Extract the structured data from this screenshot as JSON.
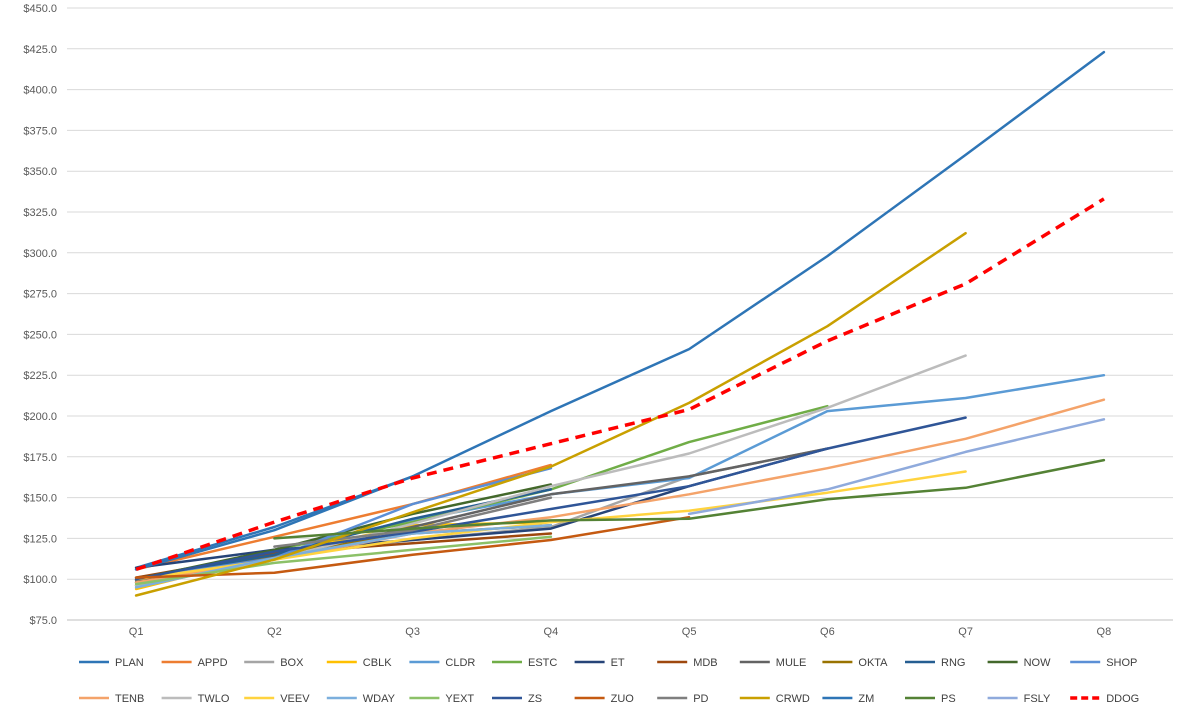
{
  "chart_data": {
    "type": "line",
    "categories": [
      "Q1",
      "Q2",
      "Q3",
      "Q4",
      "Q5",
      "Q6",
      "Q7",
      "Q8"
    ],
    "ylim": [
      75,
      450
    ],
    "yticks": [
      "$75.0",
      "$100.0",
      "$125.0",
      "$150.0",
      "$175.0",
      "$200.0",
      "$225.0",
      "$250.0",
      "$275.0",
      "$300.0",
      "$325.0",
      "$350.0",
      "$375.0",
      "$400.0",
      "$425.0",
      "$450.0"
    ],
    "grid": true,
    "legend_position": "bottom",
    "series": [
      {
        "name": "PLAN",
        "color": "#2E75B6",
        "values": [
          107,
          132,
          163,
          null,
          null,
          null,
          null,
          null
        ]
      },
      {
        "name": "APPD",
        "color": "#ED7D31",
        "values": [
          106,
          126,
          146,
          170,
          null,
          null,
          null,
          null
        ]
      },
      {
        "name": "BOX",
        "color": "#A5A5A5",
        "values": [
          101,
          114,
          124,
          132,
          163,
          180,
          null,
          null
        ]
      },
      {
        "name": "CBLK",
        "color": "#FFC000",
        "values": [
          94,
          115,
          133,
          135,
          null,
          null,
          null,
          null
        ]
      },
      {
        "name": "CLDR",
        "color": "#5B9BD5",
        "values": [
          98,
          118,
          136,
          152,
          162,
          203,
          211,
          225
        ]
      },
      {
        "name": "ESTC",
        "color": "#70AD47",
        "values": [
          98,
          118,
          135,
          155,
          184,
          206,
          null,
          null
        ]
      },
      {
        "name": "ET",
        "color": "#264478",
        "values": [
          107,
          118,
          124,
          131,
          157,
          180,
          null,
          null
        ]
      },
      {
        "name": "MDB",
        "color": "#9E480E",
        "values": [
          101,
          116,
          122,
          128,
          null,
          null,
          null,
          null
        ]
      },
      {
        "name": "MULE",
        "color": "#636363",
        "values": [
          99,
          114,
          132,
          152,
          163,
          180,
          null,
          null
        ]
      },
      {
        "name": "OKTA",
        "color": "#997300",
        "values": [
          96,
          115,
          128,
          133,
          null,
          null,
          null,
          null
        ]
      },
      {
        "name": "RNG",
        "color": "#255E91",
        "values": [
          100,
          115,
          137,
          155,
          null,
          null,
          null,
          null
        ]
      },
      {
        "name": "NOW",
        "color": "#43682B",
        "values": [
          100,
          118,
          140,
          158,
          null,
          null,
          null,
          null
        ]
      },
      {
        "name": "SHOP",
        "color": "#5B8FD6",
        "values": [
          100,
          113,
          146,
          168,
          null,
          null,
          null,
          null
        ]
      },
      {
        "name": "TENB",
        "color": "#F4A36A",
        "values": [
          98,
          112,
          128,
          138,
          152,
          168,
          186,
          210
        ]
      },
      {
        "name": "TWLO",
        "color": "#BCBCBC",
        "values": [
          96,
          112,
          134,
          157,
          177,
          205,
          237,
          null
        ]
      },
      {
        "name": "VEEV",
        "color": "#FFD33F",
        "values": [
          100,
          112,
          125,
          135,
          142,
          153,
          166,
          null
        ]
      },
      {
        "name": "WDAY",
        "color": "#7CAFDD",
        "values": [
          95,
          113,
          128,
          133,
          null,
          null,
          null,
          null
        ]
      },
      {
        "name": "YEXT",
        "color": "#8CC168",
        "values": [
          97,
          110,
          118,
          126,
          null,
          null,
          null,
          null
        ]
      },
      {
        "name": "ZS",
        "color": "#2F5597",
        "values": [
          100,
          117,
          129,
          143,
          157,
          180,
          199,
          null
        ]
      },
      {
        "name": "ZUO",
        "color": "#C55A11",
        "values": [
          101,
          104,
          115,
          124,
          138,
          null,
          null,
          null
        ]
      },
      {
        "name": "PD",
        "color": "#7F7F7F",
        "values": [
          null,
          120,
          130,
          150,
          null,
          null,
          null,
          null
        ]
      },
      {
        "name": "CRWD",
        "color": "#C9A000",
        "values": [
          90,
          112,
          141,
          169,
          208,
          255,
          312,
          null
        ]
      },
      {
        "name": "ZM",
        "color": "#2E75B6",
        "values": [
          106,
          130,
          163,
          203,
          241,
          298,
          360,
          423
        ]
      },
      {
        "name": "PS",
        "color": "#548235",
        "values": [
          null,
          125,
          131,
          136,
          137,
          149,
          156,
          173
        ]
      },
      {
        "name": "FSLY",
        "color": "#8FAADC",
        "values": [
          null,
          null,
          null,
          null,
          140,
          155,
          178,
          198
        ]
      },
      {
        "name": "DDOG",
        "color": "#FF0000",
        "dashed": true,
        "values": [
          106,
          135,
          162,
          183,
          204,
          246,
          281,
          333
        ]
      }
    ]
  }
}
